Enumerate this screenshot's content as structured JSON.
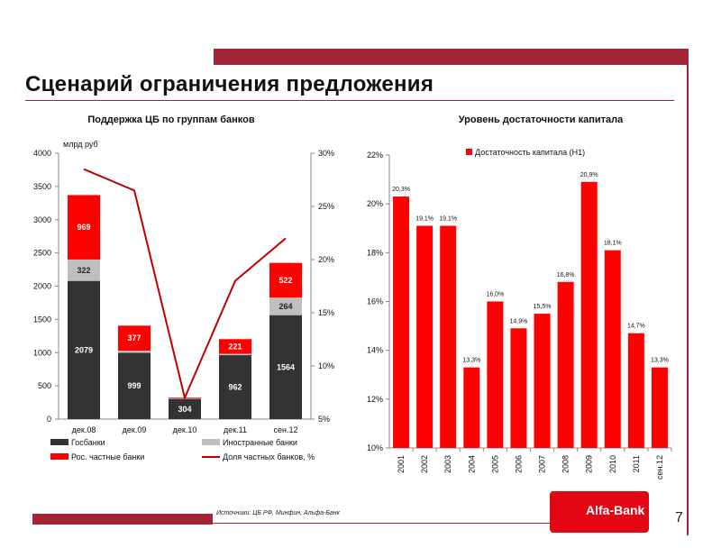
{
  "page": {
    "title": "Сценарий ограничения предложения",
    "source": "Источники: ЦБ РФ, Минфин, Альфа-Банк",
    "page_number": "7",
    "logo_text": "Alfa-Bank",
    "colors": {
      "brand": "#a32638",
      "red": "#ff0000",
      "dark": "#333333",
      "grey": "#bfbfbf"
    }
  },
  "chart_data": [
    {
      "type": "bar",
      "stacked": true,
      "title": "Поддержка ЦБ по группам банков",
      "unit_label": "млрд руб",
      "categories": [
        "дек.08",
        "дек.09",
        "дек.10",
        "дек.11",
        "сен.12"
      ],
      "series": [
        {
          "name": "Госбанки",
          "values": [
            2079,
            999,
            304,
            962,
            1564
          ],
          "labels": [
            "2079",
            "999",
            "304",
            "962",
            "1564"
          ],
          "color": "#333333"
        },
        {
          "name": "Иностранные банки",
          "values": [
            322,
            30,
            10,
            20,
            264
          ],
          "labels": [
            "322",
            "",
            "",
            "",
            "264"
          ],
          "color": "#bfbfbf"
        },
        {
          "name": "Рос. частные банки",
          "values": [
            969,
            377,
            10,
            221,
            522
          ],
          "labels": [
            "969",
            "377",
            "",
            "221",
            "522"
          ],
          "color": "#ff0000"
        }
      ],
      "line_series": {
        "name": "Доля частных банков, %",
        "values": [
          28.5,
          26.5,
          7,
          18,
          22
        ],
        "color": "#c00000"
      },
      "ylim": [
        0,
        4000
      ],
      "yticks": [
        "0",
        "500",
        "1000",
        "1500",
        "2000",
        "2500",
        "3000",
        "3500",
        "4000"
      ],
      "y2lim": [
        5,
        30
      ],
      "y2ticks": [
        "5%",
        "10%",
        "15%",
        "20%",
        "25%",
        "30%"
      ],
      "legend": "bottom"
    },
    {
      "type": "bar",
      "title": "Уровень достаточности капитала",
      "categories": [
        "2001",
        "2002",
        "2003",
        "2004",
        "2005",
        "2006",
        "2007",
        "2008",
        "2009",
        "2010",
        "2011",
        "сен.12"
      ],
      "series": [
        {
          "name": "Достаточность капитала (Н1)",
          "values": [
            20.3,
            19.1,
            19.1,
            13.3,
            16.0,
            14.9,
            15.5,
            16.8,
            20.9,
            18.1,
            14.7,
            13.3
          ],
          "labels": [
            "20,3%",
            "19,1%",
            "19,1%",
            "13,3%",
            "16,0%",
            "14,9%",
            "15,5%",
            "16,8%",
            "20,9%",
            "18,1%",
            "14,7%",
            "13,3%"
          ],
          "color": "#ff0000"
        }
      ],
      "ylim": [
        10,
        22
      ],
      "yticks": [
        "10%",
        "12%",
        "14%",
        "16%",
        "18%",
        "20%",
        "22%"
      ],
      "legend": "top-left"
    }
  ]
}
